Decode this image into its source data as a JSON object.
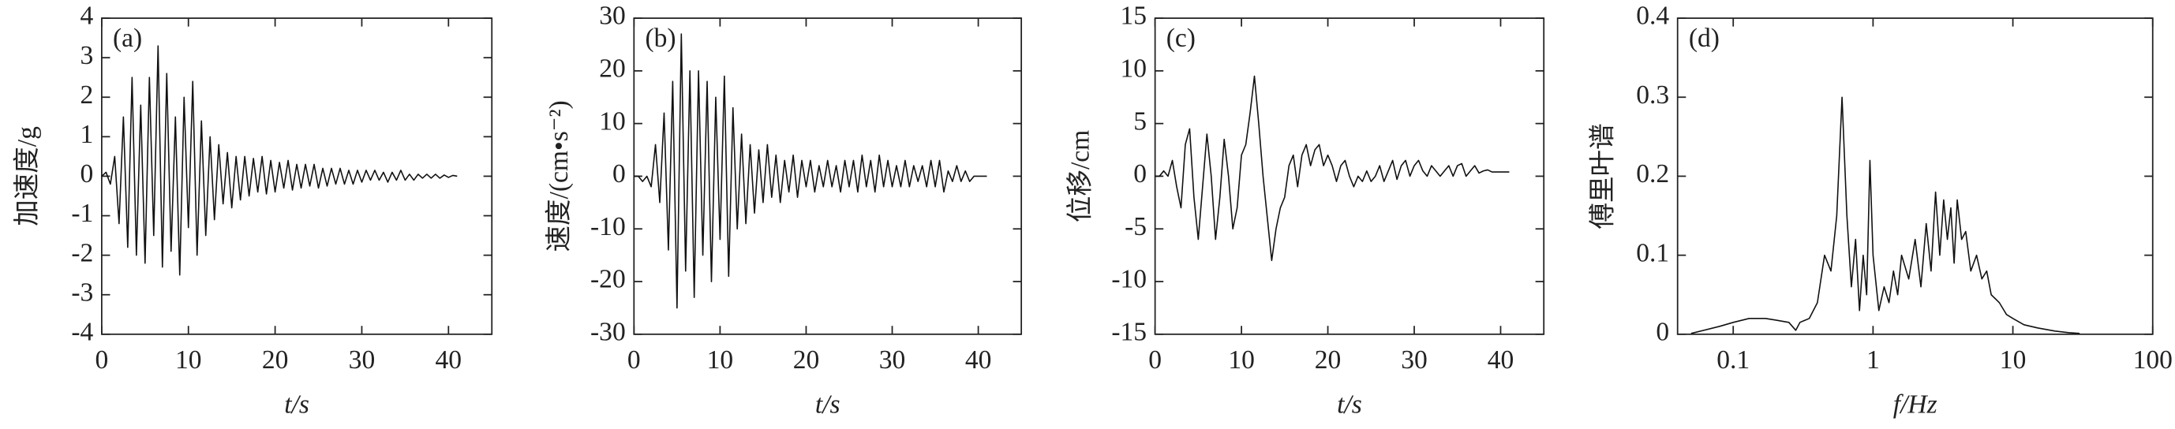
{
  "chart_data": [
    {
      "type": "line",
      "annotation": "(a)",
      "ylabel": "加速度/g",
      "xlabel": "t/s",
      "color": "#111",
      "xlim": [
        0,
        45
      ],
      "xticks": [
        0,
        10,
        20,
        30,
        40
      ],
      "ylim": [
        -4,
        4
      ],
      "yticks": [
        -4,
        -3,
        -2,
        -1,
        0,
        1,
        2,
        3,
        4
      ],
      "x": [
        0,
        0.5,
        1,
        1.5,
        2,
        2.5,
        3,
        3.5,
        4,
        4.5,
        5,
        5.5,
        6,
        6.5,
        7,
        7.5,
        8,
        8.5,
        9,
        9.5,
        10,
        10.5,
        11,
        11.5,
        12,
        12.5,
        13,
        13.5,
        14,
        14.5,
        15,
        15.5,
        16,
        16.5,
        17,
        17.5,
        18,
        18.5,
        19,
        19.5,
        20,
        20.5,
        21,
        21.5,
        22,
        22.5,
        23,
        23.5,
        24,
        24.5,
        25,
        25.5,
        26,
        26.5,
        27,
        27.5,
        28,
        28.5,
        29,
        29.5,
        30,
        30.5,
        31,
        31.5,
        32,
        32.5,
        33,
        33.5,
        34,
        34.5,
        35,
        35.5,
        36,
        36.5,
        37,
        37.5,
        38,
        38.5,
        39,
        39.5,
        40,
        40.5,
        41
      ],
      "values": [
        0,
        0.1,
        -0.2,
        0.5,
        -1.2,
        1.5,
        -1.8,
        2.5,
        -2.0,
        1.8,
        -2.2,
        2.5,
        -1.5,
        3.3,
        -2.3,
        2.6,
        -1.9,
        1.5,
        -2.5,
        2.0,
        -1.3,
        2.4,
        -2.0,
        1.4,
        -1.5,
        1.0,
        -1.1,
        0.8,
        -0.7,
        0.6,
        -0.8,
        0.5,
        -0.6,
        0.5,
        -0.5,
        0.45,
        -0.4,
        0.5,
        -0.45,
        0.4,
        -0.4,
        0.35,
        -0.3,
        0.4,
        -0.35,
        0.3,
        -0.3,
        0.3,
        -0.25,
        0.3,
        -0.3,
        0.2,
        -0.25,
        0.2,
        -0.2,
        0.2,
        -0.2,
        0.15,
        -0.2,
        0.15,
        -0.15,
        0.15,
        -0.1,
        0.15,
        -0.1,
        0.1,
        -0.15,
        0.1,
        -0.1,
        0.15,
        -0.1,
        0.05,
        -0.1,
        0.05,
        -0.05,
        0.05,
        -0.05,
        0.05,
        -0.05,
        0.03,
        -0.03,
        0.02,
        0
      ]
    },
    {
      "type": "line",
      "annotation": "(b)",
      "ylabel": "速度/(cm•s⁻²)",
      "xlabel": "t/s",
      "color": "#111",
      "xlim": [
        0,
        45
      ],
      "xticks": [
        0,
        10,
        20,
        30,
        40
      ],
      "ylim": [
        -30,
        30
      ],
      "yticks": [
        -30,
        -20,
        -10,
        0,
        10,
        20,
        30
      ],
      "x": [
        0,
        0.5,
        1,
        1.5,
        2,
        2.5,
        3,
        3.5,
        4,
        4.5,
        5,
        5.5,
        6,
        6.5,
        7,
        7.5,
        8,
        8.5,
        9,
        9.5,
        10,
        10.5,
        11,
        11.5,
        12,
        12.5,
        13,
        13.5,
        14,
        14.5,
        15,
        15.5,
        16,
        16.5,
        17,
        17.5,
        18,
        18.5,
        19,
        19.5,
        20,
        20.5,
        21,
        21.5,
        22,
        22.5,
        23,
        23.5,
        24,
        24.5,
        25,
        25.5,
        26,
        26.5,
        27,
        27.5,
        28,
        28.5,
        29,
        29.5,
        30,
        30.5,
        31,
        31.5,
        32,
        32.5,
        33,
        33.5,
        34,
        34.5,
        35,
        35.5,
        36,
        36.5,
        37,
        37.5,
        38,
        38.5,
        39,
        39.5,
        40,
        40.5,
        41
      ],
      "values": [
        0,
        0,
        -1,
        0,
        -2,
        6,
        -5,
        12,
        -14,
        18,
        -25,
        27,
        -18,
        20,
        -23,
        20,
        -15,
        18,
        -20,
        15,
        -12,
        19,
        -19,
        13,
        -10,
        8,
        -9,
        6,
        -7,
        5,
        -5,
        6,
        -4,
        4,
        -5,
        3,
        -3,
        4,
        -4,
        3,
        -2,
        3,
        -3,
        2,
        -2,
        3,
        -2,
        2,
        -3,
        3,
        -2,
        3,
        -3,
        4,
        -2,
        3,
        -3,
        4,
        -2,
        3,
        -2,
        2,
        -2,
        3,
        -2,
        2,
        -1,
        2,
        -2,
        3,
        -2,
        3,
        -3,
        1,
        -1,
        2,
        -1,
        1,
        -1,
        0,
        0,
        0,
        0
      ]
    },
    {
      "type": "line",
      "annotation": "(c)",
      "ylabel": "位移/cm",
      "xlabel": "t/s",
      "color": "#111",
      "xlim": [
        0,
        45
      ],
      "xticks": [
        0,
        10,
        20,
        30,
        40
      ],
      "ylim": [
        -15,
        15
      ],
      "yticks": [
        -15,
        -10,
        -5,
        0,
        5,
        10,
        15
      ],
      "x": [
        0,
        0.5,
        1,
        1.5,
        2,
        2.5,
        3,
        3.5,
        4,
        4.5,
        5,
        5.5,
        6,
        6.5,
        7,
        7.5,
        8,
        8.5,
        9,
        9.5,
        10,
        10.5,
        11,
        11.5,
        12,
        12.5,
        13,
        13.5,
        14,
        14.5,
        15,
        15.5,
        16,
        16.5,
        17,
        17.5,
        18,
        18.5,
        19,
        19.5,
        20,
        20.5,
        21,
        21.5,
        22,
        22.5,
        23,
        23.5,
        24,
        24.5,
        25,
        25.5,
        26,
        26.5,
        27,
        27.5,
        28,
        28.5,
        29,
        29.5,
        30,
        30.5,
        31,
        31.5,
        32,
        32.5,
        33,
        33.5,
        34,
        34.5,
        35,
        35.5,
        36,
        36.5,
        37,
        37.5,
        38,
        38.5,
        39,
        39.5,
        40,
        40.5,
        41
      ],
      "values": [
        0,
        0,
        0.5,
        0,
        1.5,
        -1,
        -3,
        3,
        4.5,
        -2,
        -6,
        -1,
        4,
        0,
        -6,
        -2,
        3.5,
        0,
        -5,
        -3,
        2,
        3,
        6,
        9.5,
        5,
        0,
        -4,
        -8,
        -5,
        -3,
        -2,
        1,
        2,
        -1,
        2,
        3,
        1,
        2.5,
        3,
        1,
        2,
        1,
        -0.5,
        1,
        1.5,
        0,
        -1,
        0,
        -0.5,
        0.5,
        -0.5,
        0,
        1,
        -0.5,
        0.5,
        1.5,
        -0.3,
        1,
        1.5,
        0,
        1,
        1.5,
        0.5,
        0,
        1,
        0.5,
        0,
        0.5,
        1,
        0,
        1,
        1.2,
        0,
        0.5,
        1,
        0.3,
        0.5,
        0.6,
        0.4,
        0.4,
        0.4,
        0.4,
        0.4
      ]
    },
    {
      "type": "line",
      "annotation": "(d)",
      "ylabel": "傅里叶谱",
      "xlabel": "f/Hz",
      "color": "#111",
      "xscale": "log",
      "xlim": [
        0.04,
        100
      ],
      "xticks": [
        0.1,
        1,
        10,
        100
      ],
      "ylim": [
        0,
        0.4
      ],
      "yticks": [
        0,
        0.1,
        0.2,
        0.3,
        0.4
      ],
      "x": [
        0.05,
        0.08,
        0.1,
        0.13,
        0.17,
        0.2,
        0.25,
        0.28,
        0.3,
        0.35,
        0.4,
        0.45,
        0.5,
        0.55,
        0.6,
        0.65,
        0.7,
        0.75,
        0.8,
        0.85,
        0.9,
        0.95,
        1.0,
        1.1,
        1.2,
        1.3,
        1.4,
        1.5,
        1.6,
        1.8,
        2.0,
        2.2,
        2.4,
        2.6,
        2.8,
        3.0,
        3.2,
        3.4,
        3.6,
        3.8,
        4.0,
        4.3,
        4.6,
        5.0,
        5.5,
        6.0,
        6.5,
        7.0,
        8.0,
        9.0,
        10,
        12,
        15,
        20,
        25,
        30
      ],
      "values": [
        0.001,
        0.01,
        0.015,
        0.02,
        0.02,
        0.018,
        0.015,
        0.005,
        0.015,
        0.02,
        0.04,
        0.1,
        0.08,
        0.15,
        0.3,
        0.15,
        0.06,
        0.12,
        0.03,
        0.1,
        0.05,
        0.22,
        0.1,
        0.03,
        0.06,
        0.04,
        0.08,
        0.05,
        0.1,
        0.07,
        0.12,
        0.06,
        0.14,
        0.08,
        0.18,
        0.1,
        0.17,
        0.12,
        0.16,
        0.09,
        0.17,
        0.12,
        0.13,
        0.08,
        0.1,
        0.07,
        0.08,
        0.05,
        0.04,
        0.025,
        0.02,
        0.012,
        0.008,
        0.004,
        0.002,
        0.001
      ]
    }
  ]
}
